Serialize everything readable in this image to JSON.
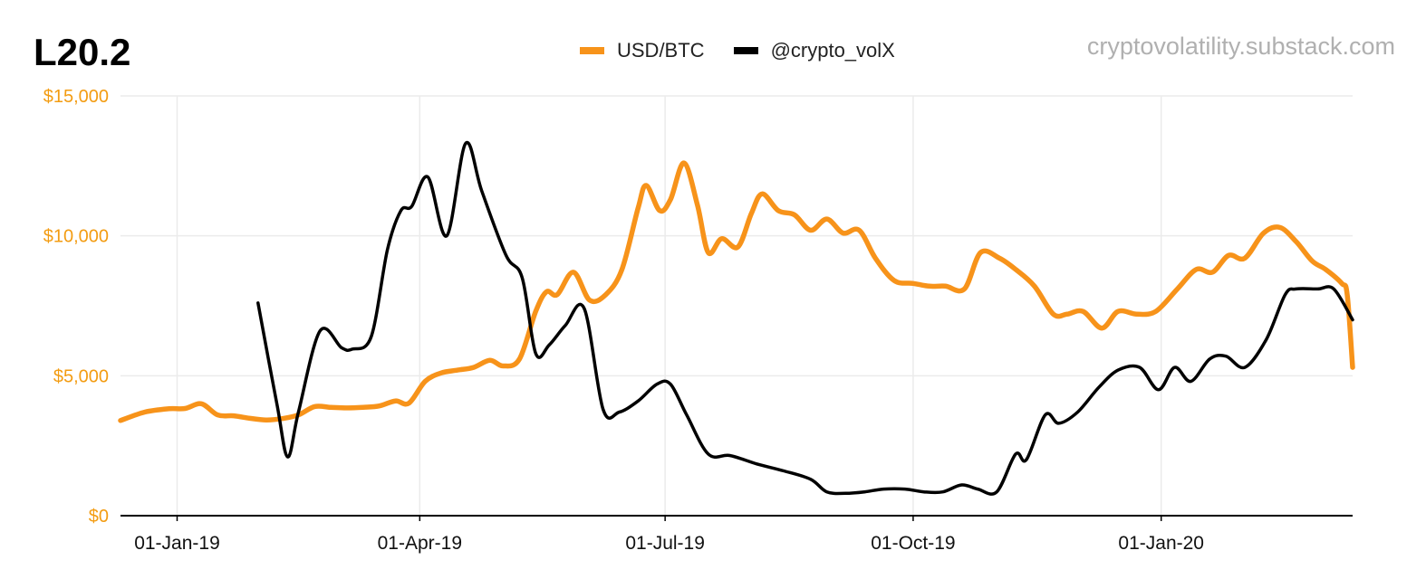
{
  "header": {
    "title": "L20.2",
    "credit": "cryptovolatility.substack.com"
  },
  "colors": {
    "btc": "#f7931a",
    "vol": "#000000",
    "grid": "#ebebeb",
    "ytick": "#f39c12"
  },
  "chart_data": {
    "type": "line",
    "title": "L20.2",
    "x_axis": {
      "type": "date",
      "range": [
        "2018-12-11",
        "2020-03-12"
      ],
      "ticks": [
        {
          "date": "2019-01-01",
          "label": "01-Jan-19"
        },
        {
          "date": "2019-04-01",
          "label": "01-Apr-19"
        },
        {
          "date": "2019-07-01",
          "label": "01-Jul-19"
        },
        {
          "date": "2019-10-01",
          "label": "01-Oct-19"
        },
        {
          "date": "2020-01-01",
          "label": "01-Jan-20"
        }
      ]
    },
    "y_axis": {
      "ylim": [
        0,
        15000
      ],
      "ticks": [
        {
          "value": 0,
          "label": "$0"
        },
        {
          "value": 5000,
          "label": "$5,000"
        },
        {
          "value": 10000,
          "label": "$10,000"
        },
        {
          "value": 15000,
          "label": "$15,000"
        }
      ]
    },
    "grid": true,
    "legend": "top-center",
    "series": [
      {
        "name": "USD/BTC",
        "color": "#f7931a",
        "points": [
          [
            "2018-12-11",
            3400
          ],
          [
            "2018-12-20",
            3700
          ],
          [
            "2018-12-29",
            3820
          ],
          [
            "2019-01-04",
            3830
          ],
          [
            "2019-01-10",
            4000
          ],
          [
            "2019-01-16",
            3600
          ],
          [
            "2019-01-22",
            3570
          ],
          [
            "2019-01-28",
            3480
          ],
          [
            "2019-02-03",
            3420
          ],
          [
            "2019-02-09",
            3470
          ],
          [
            "2019-02-15",
            3600
          ],
          [
            "2019-02-21",
            3900
          ],
          [
            "2019-02-27",
            3870
          ],
          [
            "2019-03-05",
            3850
          ],
          [
            "2019-03-11",
            3870
          ],
          [
            "2019-03-17",
            3920
          ],
          [
            "2019-03-23",
            4100
          ],
          [
            "2019-03-28",
            4020
          ],
          [
            "2019-04-03",
            4800
          ],
          [
            "2019-04-09",
            5100
          ],
          [
            "2019-04-15",
            5200
          ],
          [
            "2019-04-21",
            5300
          ],
          [
            "2019-04-27",
            5550
          ],
          [
            "2019-05-02",
            5350
          ],
          [
            "2019-05-08",
            5600
          ],
          [
            "2019-05-14",
            7300
          ],
          [
            "2019-05-18",
            8000
          ],
          [
            "2019-05-22",
            7900
          ],
          [
            "2019-05-28",
            8700
          ],
          [
            "2019-06-03",
            7700
          ],
          [
            "2019-06-09",
            7900
          ],
          [
            "2019-06-15",
            8800
          ],
          [
            "2019-06-21",
            11000
          ],
          [
            "2019-06-24",
            11800
          ],
          [
            "2019-06-29",
            10900
          ],
          [
            "2019-07-03",
            11300
          ],
          [
            "2019-07-08",
            12600
          ],
          [
            "2019-07-13",
            11100
          ],
          [
            "2019-07-17",
            9400
          ],
          [
            "2019-07-22",
            9900
          ],
          [
            "2019-07-28",
            9600
          ],
          [
            "2019-08-02",
            10800
          ],
          [
            "2019-08-06",
            11500
          ],
          [
            "2019-08-12",
            10900
          ],
          [
            "2019-08-18",
            10750
          ],
          [
            "2019-08-24",
            10200
          ],
          [
            "2019-08-30",
            10600
          ],
          [
            "2019-09-05",
            10100
          ],
          [
            "2019-09-11",
            10200
          ],
          [
            "2019-09-17",
            9200
          ],
          [
            "2019-09-24",
            8400
          ],
          [
            "2019-10-01",
            8300
          ],
          [
            "2019-10-07",
            8200
          ],
          [
            "2019-10-13",
            8200
          ],
          [
            "2019-10-20",
            8100
          ],
          [
            "2019-10-26",
            9400
          ],
          [
            "2019-11-02",
            9200
          ],
          [
            "2019-11-08",
            8800
          ],
          [
            "2019-11-15",
            8200
          ],
          [
            "2019-11-22",
            7200
          ],
          [
            "2019-11-27",
            7200
          ],
          [
            "2019-12-03",
            7300
          ],
          [
            "2019-12-10",
            6700
          ],
          [
            "2019-12-16",
            7300
          ],
          [
            "2019-12-23",
            7200
          ],
          [
            "2019-12-30",
            7300
          ],
          [
            "2020-01-07",
            8100
          ],
          [
            "2020-01-14",
            8800
          ],
          [
            "2020-01-20",
            8700
          ],
          [
            "2020-01-26",
            9300
          ],
          [
            "2020-02-01",
            9200
          ],
          [
            "2020-02-08",
            10100
          ],
          [
            "2020-02-14",
            10300
          ],
          [
            "2020-02-20",
            9800
          ],
          [
            "2020-02-26",
            9100
          ],
          [
            "2020-03-02",
            8800
          ],
          [
            "2020-03-08",
            8300
          ],
          [
            "2020-03-10",
            7900
          ],
          [
            "2020-03-12",
            5300
          ]
        ]
      },
      {
        "name": "@crypto_volX",
        "color": "#000000",
        "points": [
          [
            "2019-01-31",
            7600
          ],
          [
            "2019-02-07",
            4000
          ],
          [
            "2019-02-11",
            2100
          ],
          [
            "2019-02-15",
            3700
          ],
          [
            "2019-02-23",
            6600
          ],
          [
            "2019-03-03",
            6000
          ],
          [
            "2019-03-07",
            5950
          ],
          [
            "2019-03-14",
            6400
          ],
          [
            "2019-03-20",
            9500
          ],
          [
            "2019-03-25",
            10900
          ],
          [
            "2019-03-29",
            11050
          ],
          [
            "2019-04-04",
            12100
          ],
          [
            "2019-04-11",
            10000
          ],
          [
            "2019-04-18",
            13300
          ],
          [
            "2019-04-24",
            11600
          ],
          [
            "2019-05-03",
            9300
          ],
          [
            "2019-05-09",
            8500
          ],
          [
            "2019-05-14",
            5800
          ],
          [
            "2019-05-19",
            6100
          ],
          [
            "2019-05-25",
            6800
          ],
          [
            "2019-06-01",
            7400
          ],
          [
            "2019-06-08",
            3800
          ],
          [
            "2019-06-14",
            3700
          ],
          [
            "2019-06-21",
            4100
          ],
          [
            "2019-06-28",
            4700
          ],
          [
            "2019-07-03",
            4700
          ],
          [
            "2019-07-09",
            3600
          ],
          [
            "2019-07-17",
            2200
          ],
          [
            "2019-07-25",
            2150
          ],
          [
            "2019-08-04",
            1850
          ],
          [
            "2019-08-14",
            1600
          ],
          [
            "2019-08-24",
            1300
          ],
          [
            "2019-08-30",
            850
          ],
          [
            "2019-09-06",
            800
          ],
          [
            "2019-09-13",
            850
          ],
          [
            "2019-09-20",
            950
          ],
          [
            "2019-09-28",
            950
          ],
          [
            "2019-10-05",
            850
          ],
          [
            "2019-10-12",
            850
          ],
          [
            "2019-10-19",
            1100
          ],
          [
            "2019-10-25",
            950
          ],
          [
            "2019-11-01",
            850
          ],
          [
            "2019-11-08",
            2200
          ],
          [
            "2019-11-12",
            2000
          ],
          [
            "2019-11-19",
            3600
          ],
          [
            "2019-11-24",
            3300
          ],
          [
            "2019-12-01",
            3700
          ],
          [
            "2019-12-09",
            4600
          ],
          [
            "2019-12-16",
            5200
          ],
          [
            "2019-12-24",
            5300
          ],
          [
            "2019-12-31",
            4500
          ],
          [
            "2020-01-06",
            5300
          ],
          [
            "2020-01-12",
            4800
          ],
          [
            "2020-01-19",
            5600
          ],
          [
            "2020-01-25",
            5700
          ],
          [
            "2020-02-01",
            5300
          ],
          [
            "2020-02-09",
            6300
          ],
          [
            "2020-02-16",
            7900
          ],
          [
            "2020-02-20",
            8100
          ],
          [
            "2020-02-28",
            8100
          ],
          [
            "2020-03-05",
            8100
          ],
          [
            "2020-03-12",
            7000
          ]
        ]
      }
    ]
  }
}
